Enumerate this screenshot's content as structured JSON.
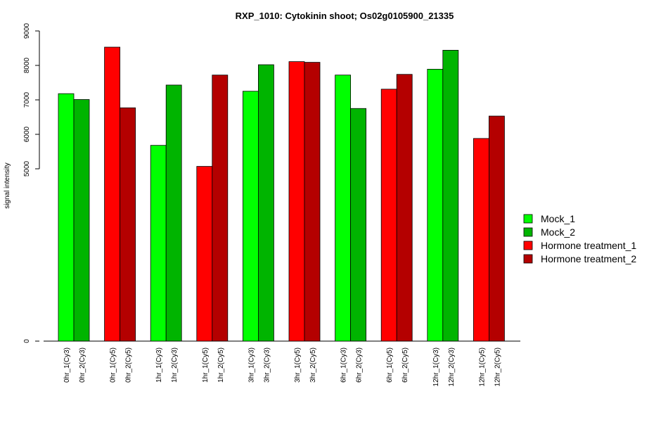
{
  "chart_data": {
    "type": "bar",
    "title": "RXP_1010: Cytokinin shoot; Os02g0105900_21335",
    "xlabel": "",
    "ylabel": "signal intensity",
    "yticks": [
      0,
      5000,
      6000,
      7000,
      8000,
      9000
    ],
    "axis_break": "broken y-axis between 0 and 5000",
    "categories": [
      "0hr_1(Cy3)",
      "0hr_2(Cy3)",
      "0hr_1(Cy5)",
      "0hr_2(Cy5)",
      "1hr_1(Cy3)",
      "1hr_2(Cy3)",
      "1hr_1(Cy5)",
      "1hr_2(Cy5)",
      "3hr_1(Cy3)",
      "3hr_2(Cy3)",
      "3hr_1(Cy5)",
      "3hr_2(Cy5)",
      "6hr_1(Cy3)",
      "6hr_2(Cy3)",
      "6hr_1(Cy5)",
      "6hr_2(Cy5)",
      "12hr_1(Cy3)",
      "12hr_2(Cy3)",
      "12hr_1(Cy5)",
      "12hr_2(Cy5)"
    ],
    "values": [
      7180,
      7010,
      8530,
      6770,
      5680,
      7430,
      5070,
      7720,
      7250,
      8020,
      8110,
      8090,
      7720,
      6750,
      7310,
      7740,
      7890,
      8440,
      5880,
      6530
    ],
    "bar_series": [
      0,
      1,
      2,
      3,
      0,
      1,
      2,
      3,
      0,
      1,
      2,
      3,
      0,
      1,
      2,
      3,
      0,
      1,
      2,
      3
    ],
    "series": [
      {
        "name": "Mock_1",
        "color": "#00ff00"
      },
      {
        "name": "Mock_2",
        "color": "#00b400"
      },
      {
        "name": "Hormone treatment_1",
        "color": "#ff0000"
      },
      {
        "name": "Hormone treatment_2",
        "color": "#b40000"
      }
    ],
    "legend_placement": "right",
    "grid": false
  }
}
